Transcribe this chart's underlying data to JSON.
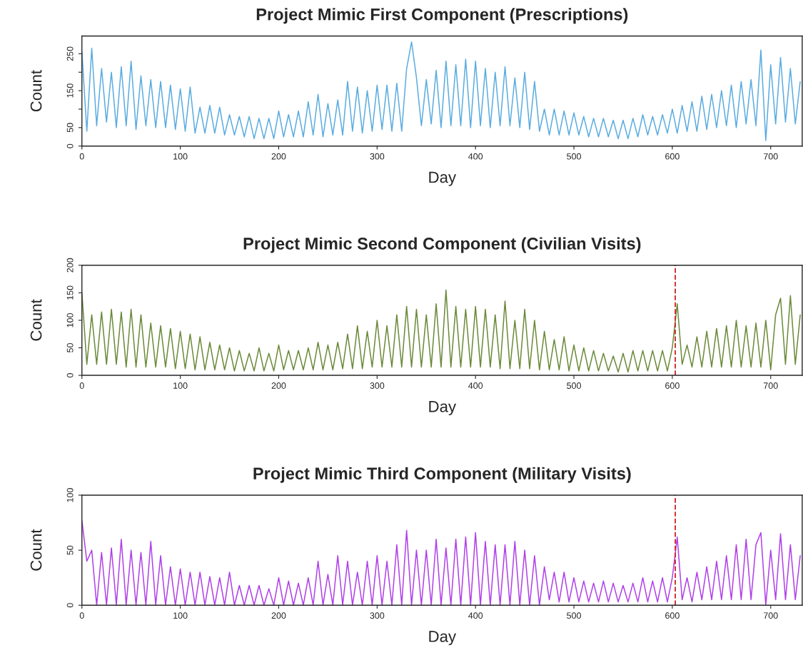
{
  "chart_data": [
    {
      "type": "line",
      "title": "Project Mimic First Component (Prescriptions)",
      "xlabel": "Day",
      "ylabel": "Count",
      "x": [
        0,
        5,
        10,
        15,
        20,
        25,
        30,
        35,
        40,
        45,
        50,
        55,
        60,
        65,
        70,
        75,
        80,
        85,
        90,
        95,
        100,
        105,
        110,
        115,
        120,
        125,
        130,
        135,
        140,
        145,
        150,
        155,
        160,
        165,
        170,
        175,
        180,
        185,
        190,
        195,
        200,
        205,
        210,
        215,
        220,
        225,
        230,
        235,
        240,
        245,
        250,
        255,
        260,
        265,
        270,
        275,
        280,
        285,
        290,
        295,
        300,
        305,
        310,
        315,
        320,
        325,
        330,
        335,
        340,
        345,
        350,
        355,
        360,
        365,
        370,
        375,
        380,
        385,
        390,
        395,
        400,
        405,
        410,
        415,
        420,
        425,
        430,
        435,
        440,
        445,
        450,
        455,
        460,
        465,
        470,
        475,
        480,
        485,
        490,
        495,
        500,
        505,
        510,
        515,
        520,
        525,
        530,
        535,
        540,
        545,
        550,
        555,
        560,
        565,
        570,
        575,
        580,
        585,
        590,
        595,
        600,
        605,
        610,
        615,
        620,
        625,
        630,
        635,
        640,
        645,
        650,
        655,
        660,
        665,
        670,
        675,
        680,
        685,
        690,
        695,
        700,
        705,
        710,
        715,
        720,
        725,
        730
      ],
      "series": [
        {
          "color": "#5aace0",
          "values": [
            255,
            40,
            265,
            55,
            210,
            65,
            200,
            50,
            215,
            55,
            230,
            45,
            190,
            55,
            180,
            50,
            175,
            50,
            165,
            45,
            155,
            40,
            160,
            35,
            105,
            35,
            110,
            35,
            105,
            30,
            85,
            30,
            80,
            25,
            80,
            20,
            75,
            20,
            75,
            20,
            95,
            25,
            85,
            25,
            95,
            25,
            120,
            30,
            140,
            25,
            115,
            30,
            125,
            30,
            175,
            40,
            160,
            35,
            150,
            40,
            165,
            45,
            165,
            40,
            170,
            40,
            210,
            282,
            185,
            55,
            180,
            60,
            205,
            50,
            230,
            55,
            220,
            55,
            235,
            50,
            230,
            55,
            210,
            50,
            200,
            55,
            215,
            55,
            185,
            50,
            200,
            45,
            175,
            40,
            100,
            30,
            100,
            30,
            95,
            30,
            90,
            30,
            80,
            25,
            75,
            25,
            75,
            25,
            70,
            20,
            70,
            20,
            75,
            25,
            85,
            30,
            80,
            30,
            85,
            35,
            100,
            35,
            110,
            40,
            120,
            40,
            135,
            45,
            140,
            50,
            150,
            55,
            165,
            50,
            175,
            60,
            180,
            55,
            260,
            15,
            220,
            60,
            240,
            65,
            210,
            60,
            175
          ]
        }
      ],
      "xlim": [
        0,
        732
      ],
      "xticks": [
        0,
        100,
        200,
        300,
        400,
        500,
        600,
        700
      ],
      "ylim": [
        0,
        298
      ],
      "yticks": [
        0,
        50,
        {
          "value": 100,
          "label": null
        },
        150,
        {
          "value": 200,
          "label": null
        },
        250
      ],
      "grid": false,
      "marker": "none",
      "line_style": "solid"
    },
    {
      "type": "line",
      "title": "Project Mimic Second Component (Civilian Visits)",
      "xlabel": "Day",
      "ylabel": "Count",
      "x": [
        0,
        5,
        10,
        15,
        20,
        25,
        30,
        35,
        40,
        45,
        50,
        55,
        60,
        65,
        70,
        75,
        80,
        85,
        90,
        95,
        100,
        105,
        110,
        115,
        120,
        125,
        130,
        135,
        140,
        145,
        150,
        155,
        160,
        165,
        170,
        175,
        180,
        185,
        190,
        195,
        200,
        205,
        210,
        215,
        220,
        225,
        230,
        235,
        240,
        245,
        250,
        255,
        260,
        265,
        270,
        275,
        280,
        285,
        290,
        295,
        300,
        305,
        310,
        315,
        320,
        325,
        330,
        335,
        340,
        345,
        350,
        355,
        360,
        365,
        370,
        375,
        380,
        385,
        390,
        395,
        400,
        405,
        410,
        415,
        420,
        425,
        430,
        435,
        440,
        445,
        450,
        455,
        460,
        465,
        470,
        475,
        480,
        485,
        490,
        495,
        500,
        505,
        510,
        515,
        520,
        525,
        530,
        535,
        540,
        545,
        550,
        555,
        560,
        565,
        570,
        575,
        580,
        585,
        590,
        595,
        600,
        605,
        610,
        615,
        620,
        625,
        630,
        635,
        640,
        645,
        650,
        655,
        660,
        665,
        670,
        675,
        680,
        685,
        690,
        695,
        700,
        705,
        710,
        715,
        720,
        725,
        730
      ],
      "series": [
        {
          "color": "#6b8a3a",
          "values": [
            150,
            20,
            110,
            20,
            115,
            20,
            120,
            20,
            115,
            15,
            120,
            15,
            110,
            15,
            95,
            15,
            90,
            15,
            85,
            12,
            80,
            12,
            75,
            10,
            70,
            10,
            60,
            10,
            55,
            10,
            50,
            8,
            45,
            8,
            40,
            8,
            50,
            8,
            40,
            8,
            55,
            10,
            45,
            10,
            45,
            10,
            50,
            10,
            60,
            10,
            55,
            10,
            60,
            12,
            75,
            12,
            90,
            12,
            80,
            15,
            100,
            15,
            90,
            15,
            110,
            15,
            125,
            15,
            120,
            15,
            110,
            15,
            130,
            15,
            155,
            15,
            125,
            15,
            120,
            15,
            125,
            15,
            120,
            15,
            110,
            12,
            135,
            12,
            100,
            12,
            120,
            12,
            100,
            10,
            80,
            10,
            65,
            10,
            70,
            8,
            55,
            8,
            50,
            8,
            45,
            8,
            40,
            8,
            35,
            6,
            40,
            6,
            45,
            8,
            45,
            8,
            45,
            8,
            45,
            8,
            50,
            130,
            20,
            55,
            15,
            70,
            15,
            80,
            15,
            85,
            15,
            90,
            15,
            100,
            15,
            90,
            15,
            95,
            15,
            100,
            10,
            110,
            140,
            20,
            145,
            20,
            110
          ]
        }
      ],
      "xlim": [
        0,
        732
      ],
      "xticks": [
        0,
        100,
        200,
        300,
        400,
        500,
        600,
        700
      ],
      "ylim": [
        0,
        200
      ],
      "yticks": [
        0,
        50,
        100,
        150,
        200
      ],
      "ref_lines": [
        {
          "axis": "x",
          "value": 603,
          "color": "#cc2222",
          "line_style": "dashed"
        }
      ],
      "grid": false,
      "marker": "none",
      "line_style": "solid"
    },
    {
      "type": "line",
      "title": "Project Mimic Third Component (Military Visits)",
      "xlabel": "Day",
      "ylabel": "Count",
      "x": [
        0,
        5,
        10,
        15,
        20,
        25,
        30,
        35,
        40,
        45,
        50,
        55,
        60,
        65,
        70,
        75,
        80,
        85,
        90,
        95,
        100,
        105,
        110,
        115,
        120,
        125,
        130,
        135,
        140,
        145,
        150,
        155,
        160,
        165,
        170,
        175,
        180,
        185,
        190,
        195,
        200,
        205,
        210,
        215,
        220,
        225,
        230,
        235,
        240,
        245,
        250,
        255,
        260,
        265,
        270,
        275,
        280,
        285,
        290,
        295,
        300,
        305,
        310,
        315,
        320,
        325,
        330,
        335,
        340,
        345,
        350,
        355,
        360,
        365,
        370,
        375,
        380,
        385,
        390,
        395,
        400,
        405,
        410,
        415,
        420,
        425,
        430,
        435,
        440,
        445,
        450,
        455,
        460,
        465,
        470,
        475,
        480,
        485,
        490,
        495,
        500,
        505,
        510,
        515,
        520,
        525,
        530,
        535,
        540,
        545,
        550,
        555,
        560,
        565,
        570,
        575,
        580,
        585,
        590,
        595,
        600,
        605,
        610,
        615,
        620,
        625,
        630,
        635,
        640,
        645,
        650,
        655,
        660,
        665,
        670,
        675,
        680,
        685,
        690,
        695,
        700,
        705,
        710,
        715,
        720,
        725,
        730
      ],
      "series": [
        {
          "color": "#b040e8",
          "values": [
            77,
            40,
            50,
            0,
            48,
            0,
            52,
            0,
            60,
            0,
            50,
            0,
            48,
            0,
            58,
            0,
            45,
            0,
            35,
            0,
            33,
            0,
            30,
            0,
            30,
            0,
            26,
            0,
            25,
            0,
            30,
            0,
            18,
            0,
            18,
            0,
            18,
            0,
            15,
            0,
            25,
            0,
            22,
            0,
            20,
            0,
            25,
            0,
            40,
            0,
            28,
            0,
            45,
            0,
            40,
            0,
            30,
            0,
            40,
            0,
            45,
            0,
            40,
            0,
            55,
            0,
            68,
            0,
            50,
            0,
            50,
            0,
            60,
            0,
            52,
            0,
            60,
            0,
            62,
            0,
            66,
            0,
            58,
            0,
            55,
            0,
            55,
            0,
            58,
            0,
            50,
            0,
            45,
            0,
            35,
            5,
            30,
            3,
            30,
            3,
            25,
            3,
            22,
            3,
            20,
            3,
            22,
            3,
            20,
            3,
            18,
            3,
            20,
            3,
            25,
            3,
            22,
            3,
            25,
            3,
            25,
            62,
            5,
            25,
            3,
            30,
            5,
            35,
            5,
            40,
            5,
            45,
            5,
            55,
            5,
            60,
            5,
            55,
            66,
            0,
            50,
            5,
            65,
            5,
            55,
            5,
            45
          ]
        }
      ],
      "xlim": [
        0,
        732
      ],
      "xticks": [
        0,
        100,
        200,
        300,
        400,
        500,
        600,
        700
      ],
      "ylim": [
        0,
        100
      ],
      "yticks": [
        0,
        50,
        100
      ],
      "ref_lines": [
        {
          "axis": "x",
          "value": 603,
          "color": "#cc2222",
          "line_style": "dashed"
        }
      ],
      "grid": false,
      "marker": "none",
      "line_style": "solid"
    }
  ]
}
